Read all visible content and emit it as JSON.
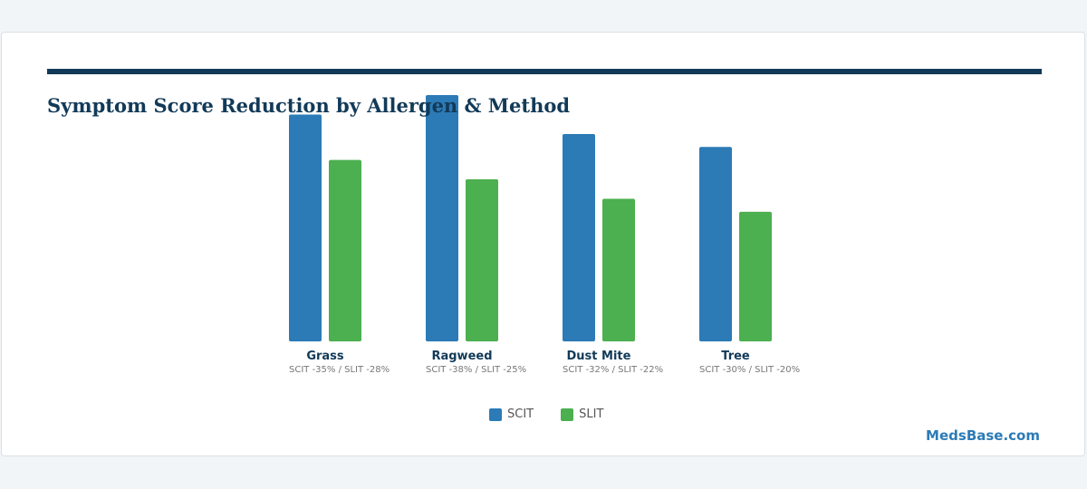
{
  "title": "Symptom Score Reduction by Allergen & Method",
  "brand": "MedsBase.com",
  "colors": {
    "primary": "#2c7bb6",
    "secondary": "#4caf50",
    "header": "#123a58"
  },
  "chart_data": {
    "type": "bar",
    "categories": [
      "Grass",
      "Ragweed",
      "Dust Mite",
      "Tree"
    ],
    "series": [
      {
        "name": "SCIT",
        "values": [
          35,
          38,
          32,
          30
        ]
      },
      {
        "name": "SLIT",
        "values": [
          28,
          25,
          22,
          20
        ]
      }
    ],
    "sublabels": [
      "SCIT -35% / SLIT -28%",
      "SCIT -38% / SLIT -25%",
      "SCIT -32% / SLIT -22%",
      "SCIT -30% / SLIT -20%"
    ],
    "ylim": [
      0,
      38
    ],
    "grid": false,
    "legend_position": "bottom-center"
  }
}
